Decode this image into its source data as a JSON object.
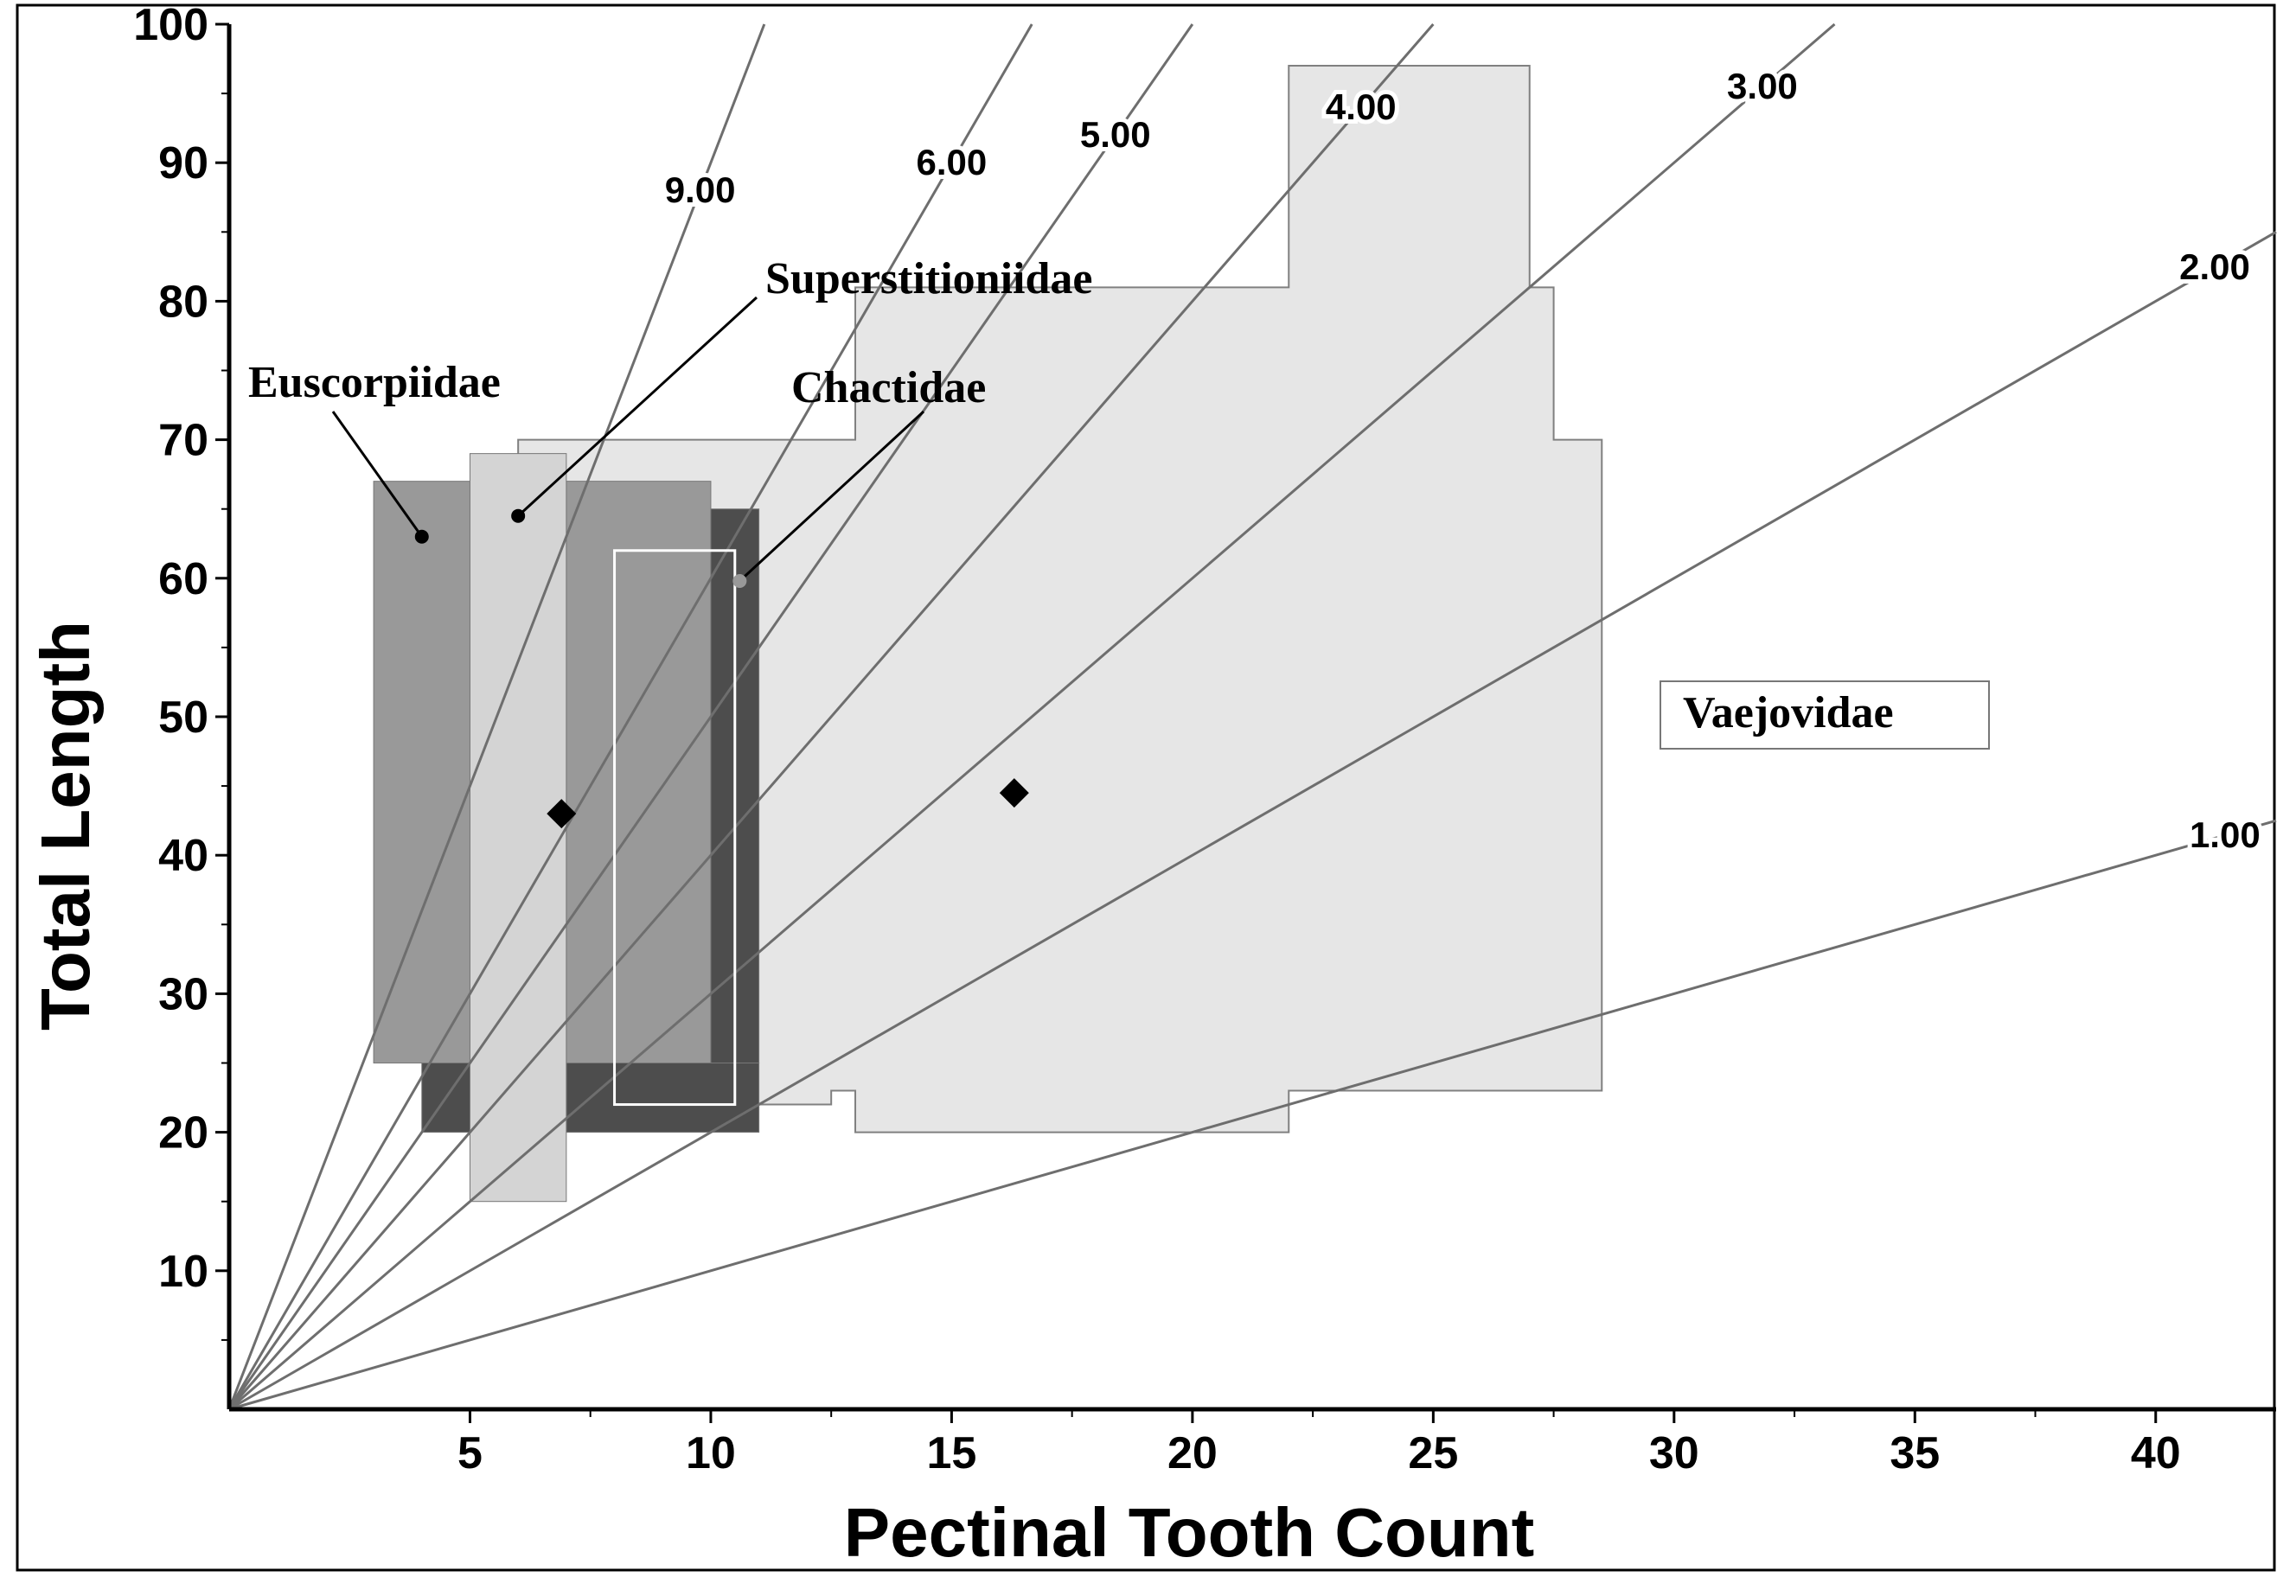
{
  "chart_data": {
    "type": "range-area",
    "title": "",
    "xlabel": "Pectinal Tooth Count",
    "ylabel": "Total Length",
    "xlim": [
      0,
      42.5
    ],
    "ylim": [
      0,
      100
    ],
    "x_ticks": [
      5,
      10,
      15,
      20,
      25,
      30,
      35,
      40
    ],
    "y_ticks": [
      10,
      20,
      30,
      40,
      50,
      60,
      70,
      80,
      90,
      100
    ],
    "grid": false,
    "ratio_lines": [
      {
        "label": "9.00",
        "slope": 9.0
      },
      {
        "label": "6.00",
        "slope": 6.0
      },
      {
        "label": "5.00",
        "slope": 5.0
      },
      {
        "label": "4.00",
        "slope": 4.0
      },
      {
        "label": "3.00",
        "slope": 3.0
      },
      {
        "label": "2.00",
        "slope": 2.0
      },
      {
        "label": "1.00",
        "slope": 1.0
      }
    ],
    "families": [
      {
        "name": "Vaejovidae",
        "color": "#e6e6e6",
        "outline": "#808080",
        "outline_points": [
          [
            6,
            22
          ],
          [
            12.5,
            22
          ],
          [
            12.5,
            23
          ],
          [
            13,
            23
          ],
          [
            13,
            20
          ],
          [
            22,
            20
          ],
          [
            22,
            23
          ],
          [
            28.5,
            23
          ],
          [
            28.5,
            70
          ],
          [
            27.5,
            70
          ],
          [
            27.5,
            81
          ],
          [
            27,
            81
          ],
          [
            27,
            97
          ],
          [
            22,
            97
          ],
          [
            22,
            81
          ],
          [
            13,
            81
          ],
          [
            13,
            70
          ],
          [
            6,
            70
          ]
        ]
      },
      {
        "name": "Euscorpiidae",
        "color": "#999999",
        "rects": [
          [
            3,
            25,
            5,
            67
          ],
          [
            7,
            25,
            10,
            67
          ]
        ]
      },
      {
        "name": "Chactidae",
        "color": "#4d4d4d",
        "rects": [
          [
            4,
            20,
            5,
            25
          ],
          [
            7,
            20,
            11,
            25
          ],
          [
            10,
            25,
            11,
            65
          ]
        ]
      },
      {
        "name": "Superstitioniidae",
        "color": "#d4d4d4",
        "rects": [
          [
            5,
            15,
            7,
            69
          ]
        ]
      }
    ],
    "white_outline_rect": [
      8,
      22,
      10.5,
      62
    ],
    "mean_points": [
      {
        "x": 6.9,
        "y": 43
      },
      {
        "x": 16.3,
        "y": 44.5
      }
    ],
    "labels": [
      {
        "text": "Euscorpiidae",
        "pointer_to": [
          4,
          63
        ]
      },
      {
        "text": "Superstitioniidae",
        "pointer_to": [
          6,
          64.5
        ]
      },
      {
        "text": "Chactidae",
        "pointer_to": [
          10.6,
          59.8
        ]
      },
      {
        "text": "Vaejovidae",
        "boxed": true
      }
    ]
  }
}
